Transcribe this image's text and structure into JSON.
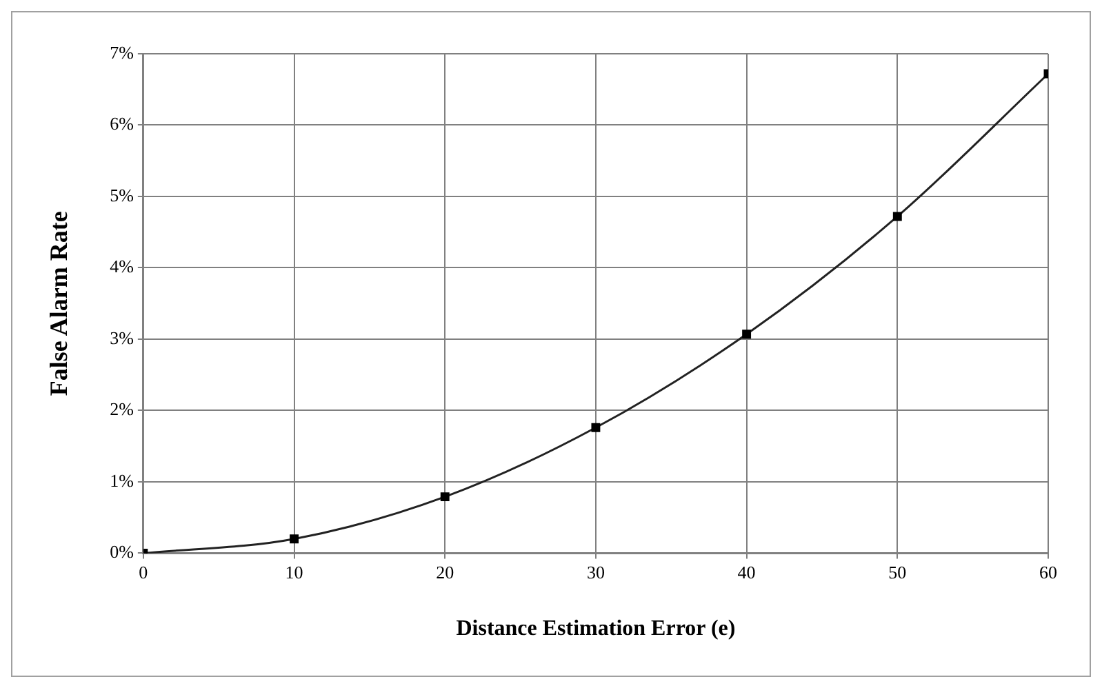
{
  "chart_data": {
    "type": "line",
    "xlabel": "Distance Estimation Error (e)",
    "ylabel": "False Alarm Rate",
    "x": [
      0,
      10,
      20,
      30,
      40,
      50,
      60
    ],
    "series": [
      {
        "color": "#222222",
        "values": [
          0,
          0.2,
          0.79,
          1.76,
          3.07,
          4.72,
          6.72
        ]
      }
    ],
    "xlim": [
      0,
      60
    ],
    "xticks": [
      0,
      10,
      20,
      30,
      40,
      50,
      60
    ],
    "ylim": [
      0,
      7
    ],
    "yticks": [
      {
        "value": 0,
        "label": "0%"
      },
      {
        "value": 1,
        "label": "1%"
      },
      {
        "value": 2,
        "label": "2%"
      },
      {
        "value": 3,
        "label": "3%"
      },
      {
        "value": 4,
        "label": "4%"
      },
      {
        "value": 5,
        "label": "5%"
      },
      {
        "value": 6,
        "label": "6%"
      },
      {
        "value": 7,
        "label": "7%"
      }
    ],
    "grid": true,
    "marker": "square",
    "line_style": "solid",
    "legend": false
  }
}
